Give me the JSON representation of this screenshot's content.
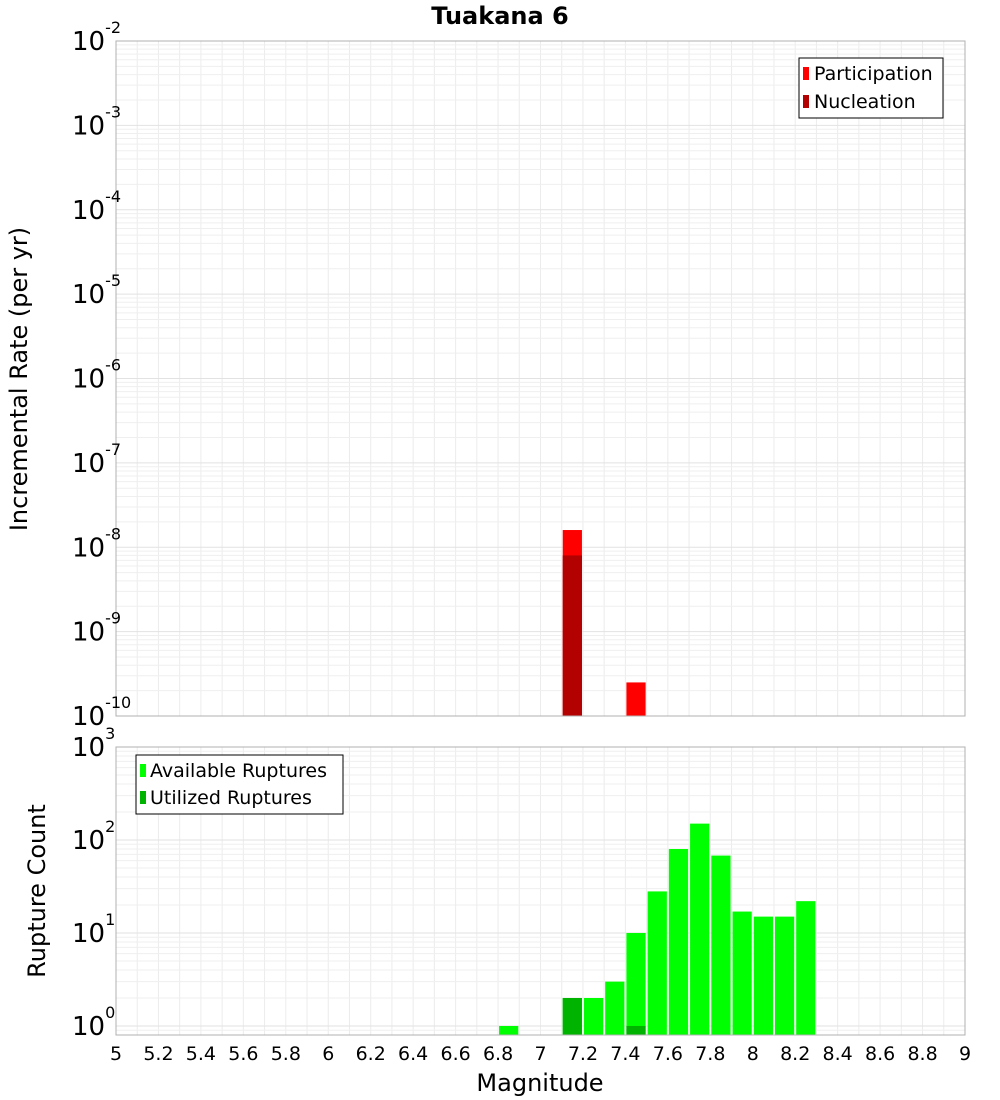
{
  "chart_data": [
    {
      "type": "bar",
      "title": "Tuakana 6",
      "ylabel": "Incremental Rate (per yr)",
      "yscale": "log",
      "ylim": [
        1e-10,
        0.01
      ],
      "xlim": [
        5,
        9
      ],
      "legend_position": "top-right",
      "grid": true,
      "series": [
        {
          "name": "Participation",
          "color": "#ff0000",
          "x": [
            7.15,
            7.45
          ],
          "values": [
            1.6e-08,
            2.5e-10
          ]
        },
        {
          "name": "Nucleation",
          "color": "#b30000",
          "x": [
            7.15
          ],
          "values": [
            8e-09
          ]
        }
      ]
    },
    {
      "type": "bar",
      "ylabel": "Rupture Count",
      "xlabel": "Magnitude",
      "yscale": "log",
      "ylim": [
        0.8,
        1000
      ],
      "xlim": [
        5,
        9
      ],
      "legend_position": "top-left",
      "grid": true,
      "series": [
        {
          "name": "Available Ruptures",
          "color": "#00ff00",
          "x": [
            6.85,
            7.15,
            7.25,
            7.35,
            7.45,
            7.55,
            7.65,
            7.75,
            7.85,
            7.95,
            8.05,
            8.15,
            8.25
          ],
          "values": [
            1,
            2,
            2,
            3,
            10,
            28,
            80,
            150,
            68,
            17,
            15,
            15,
            22
          ]
        },
        {
          "name": "Utilized Ruptures",
          "color": "#00b300",
          "x": [
            7.15,
            7.45
          ],
          "values": [
            2,
            1
          ]
        }
      ]
    }
  ],
  "x_ticks": [
    "5",
    "5.2",
    "5.4",
    "5.6",
    "5.8",
    "6",
    "6.2",
    "6.4",
    "6.6",
    "6.8",
    "7",
    "7.2",
    "7.4",
    "7.6",
    "7.8",
    "8",
    "8.2",
    "8.4",
    "8.6",
    "8.8",
    "9"
  ]
}
